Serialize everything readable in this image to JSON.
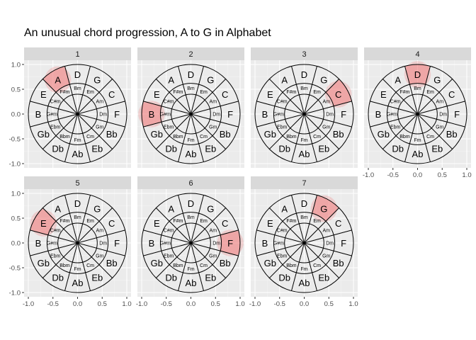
{
  "chart_data": {
    "type": "faceted-circle-of-fifths",
    "title": "An unusual chord progression, A to G in Alphabet",
    "xlabel": "",
    "ylabel": "",
    "xlim": [
      -1.0,
      1.0
    ],
    "ylim": [
      -1.0,
      1.0
    ],
    "x_ticks": [
      "-1.0",
      "-0.5",
      "0.0",
      "0.5",
      "1.0"
    ],
    "y_ticks": [
      "-1.0",
      "-0.5",
      "0.0",
      "0.5",
      "1.0"
    ],
    "grid": true,
    "legend": "none",
    "panel_background": "#ebebeb",
    "strip_background": "#d9d9d9",
    "highlight_color": "#f08080",
    "outer_ring": [
      "D",
      "G",
      "C",
      "F",
      "Bb",
      "Eb",
      "Ab",
      "Db",
      "Gb",
      "B",
      "E",
      "A"
    ],
    "middle_ring": [
      "Bm",
      "Em",
      "Am",
      "Dm",
      "Gm",
      "Cm",
      "Fm",
      "Bbm",
      "Ebm",
      "G#m",
      "C#m",
      "F#m"
    ],
    "panels": [
      {
        "strip": "1",
        "highlight": "A"
      },
      {
        "strip": "2",
        "highlight": "B"
      },
      {
        "strip": "3",
        "highlight": "C"
      },
      {
        "strip": "4",
        "highlight": "D"
      },
      {
        "strip": "5",
        "highlight": "E"
      },
      {
        "strip": "6",
        "highlight": "F"
      },
      {
        "strip": "7",
        "highlight": "G"
      }
    ]
  }
}
